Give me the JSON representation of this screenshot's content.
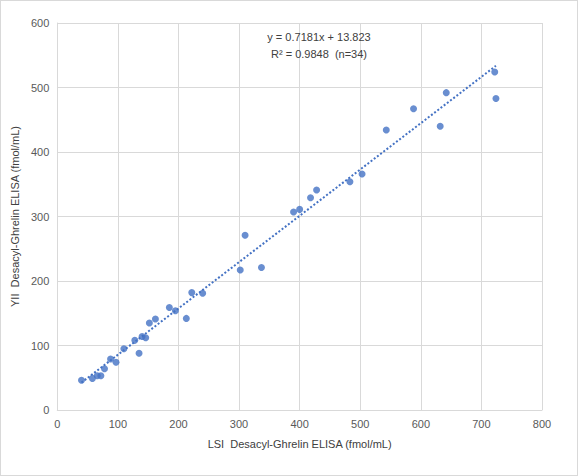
{
  "chart_data": {
    "type": "scatter",
    "x_label": "LSI  Desacyl-Ghrelin ELISA (fmol/mL)",
    "y_label": "YII  Desacyl-Ghrelin ELISA (fmol/mL)",
    "x": [
      40,
      58,
      66,
      72,
      78,
      88,
      97,
      110,
      128,
      135,
      140,
      146,
      152,
      162,
      185,
      195,
      213,
      222,
      240,
      302,
      310,
      337,
      390,
      400,
      418,
      428,
      483,
      503,
      543,
      588,
      632,
      642,
      722,
      724
    ],
    "values": [
      46,
      49,
      53,
      53,
      64,
      79,
      74,
      95,
      108,
      88,
      114,
      112,
      135,
      141,
      159,
      154,
      142,
      182,
      181,
      217,
      271,
      221,
      307,
      311,
      329,
      341,
      354,
      366,
      434,
      467,
      440,
      492,
      524,
      483
    ],
    "color": "#4472c4",
    "marker": "circle",
    "xlim": [
      0,
      800
    ],
    "xticks": [
      0,
      100,
      200,
      300,
      400,
      500,
      600,
      700,
      800
    ],
    "ylim": [
      0,
      600
    ],
    "yticks": [
      0,
      100,
      200,
      300,
      400,
      500,
      600
    ],
    "grid": true,
    "trendline": {
      "slope": 0.7181,
      "intercept": 13.823,
      "color": "#4472c4",
      "line_style": "dotted"
    },
    "annotations": [
      "y = 0.7181x + 13.823",
      "R² = 0.9848  (n=34)"
    ]
  }
}
